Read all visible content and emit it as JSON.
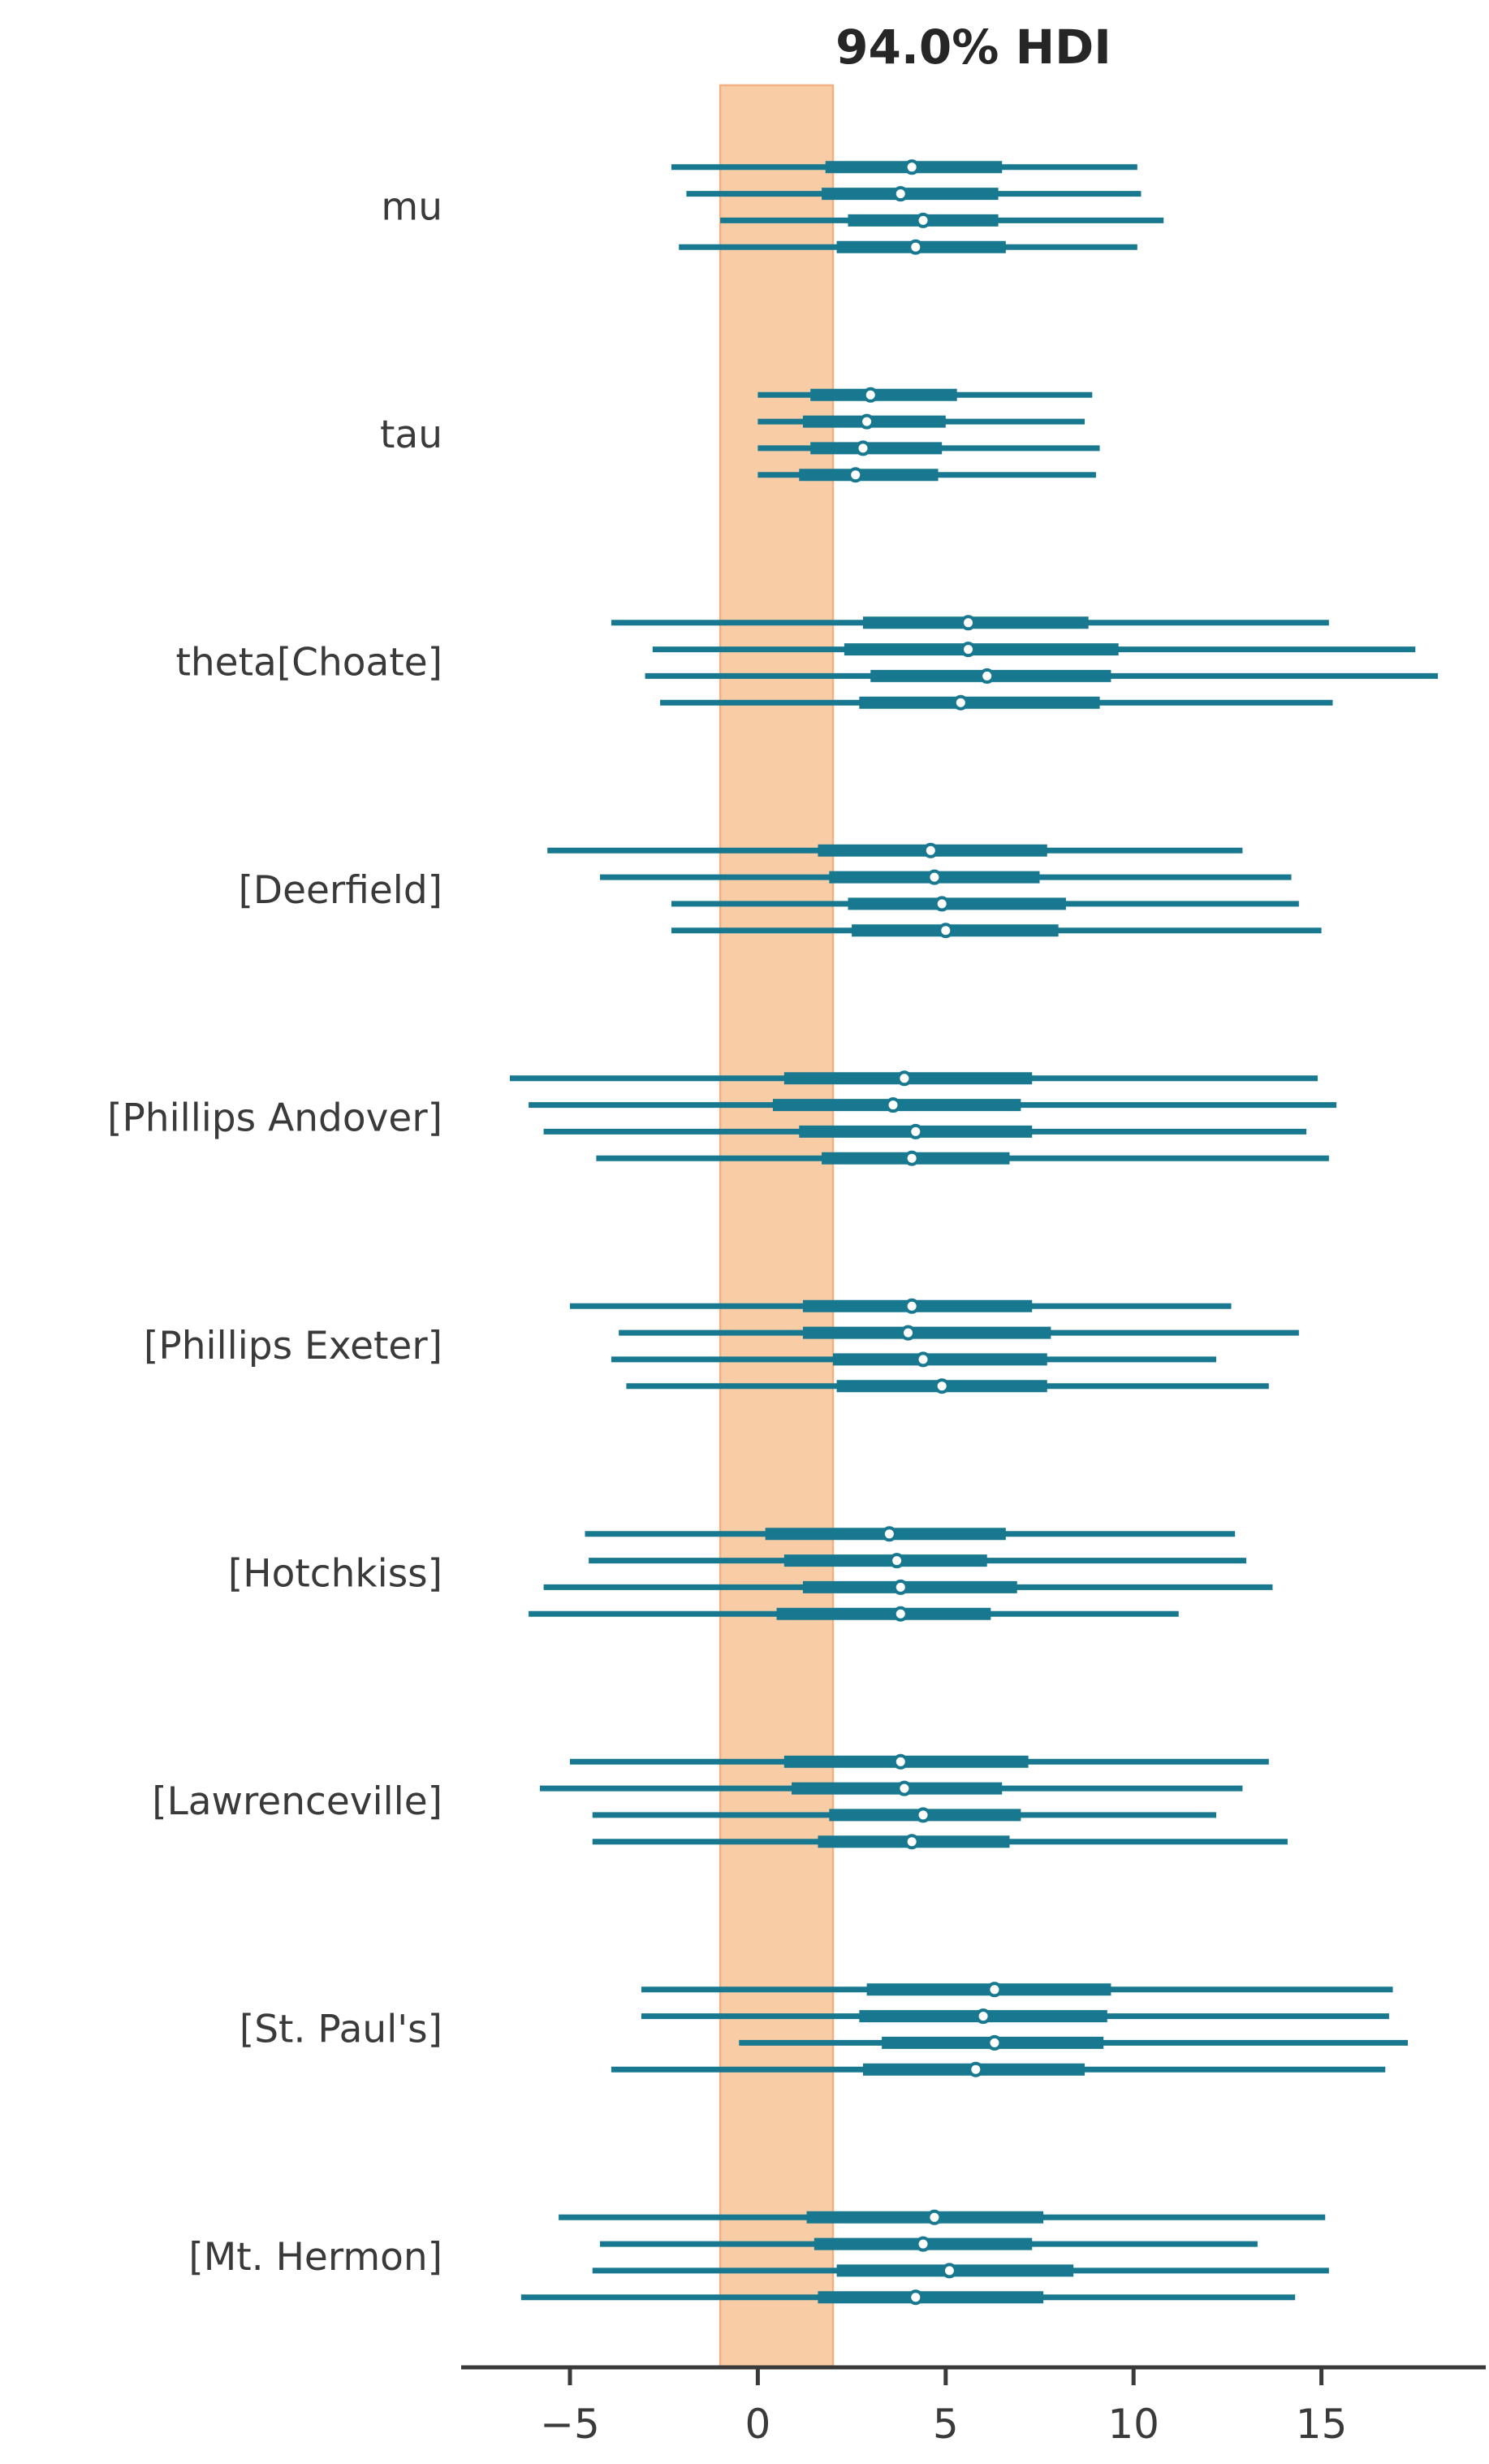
{
  "figure": {
    "title": "94.0% HDI"
  },
  "chart_data": {
    "type": "forest",
    "title": "94.0% HDI",
    "xlabel": "",
    "ylabel": "",
    "x_ticks": [
      -5,
      0,
      5,
      10,
      15
    ],
    "x_tick_labels": [
      "−5",
      "0",
      "5",
      "10",
      "15"
    ],
    "xlim": [
      -7.9,
      19.4
    ],
    "grid": false,
    "legend_position": "none",
    "hdi_prob": 0.94,
    "rope_interval": [
      -1,
      2
    ],
    "chains_per_parameter": 4,
    "value_keys": [
      "hdi_low",
      "q25",
      "median",
      "q75",
      "hdi_high"
    ],
    "parameters": [
      {
        "label": "mu",
        "chains": [
          {
            "hdi_low": -2.3,
            "q25": 1.8,
            "median": 4.1,
            "q75": 6.5,
            "hdi_high": 10.1
          },
          {
            "hdi_low": -1.9,
            "q25": 1.7,
            "median": 3.8,
            "q75": 6.4,
            "hdi_high": 10.2
          },
          {
            "hdi_low": -1.0,
            "q25": 2.4,
            "median": 4.4,
            "q75": 6.4,
            "hdi_high": 10.8
          },
          {
            "hdi_low": -2.1,
            "q25": 2.1,
            "median": 4.2,
            "q75": 6.6,
            "hdi_high": 10.1
          }
        ]
      },
      {
        "label": "tau",
        "chains": [
          {
            "hdi_low": 0.0,
            "q25": 1.4,
            "median": 3.0,
            "q75": 5.3,
            "hdi_high": 8.9
          },
          {
            "hdi_low": 0.0,
            "q25": 1.2,
            "median": 2.9,
            "q75": 5.0,
            "hdi_high": 8.7
          },
          {
            "hdi_low": 0.0,
            "q25": 1.4,
            "median": 2.8,
            "q75": 4.9,
            "hdi_high": 9.1
          },
          {
            "hdi_low": 0.0,
            "q25": 1.1,
            "median": 2.6,
            "q75": 4.8,
            "hdi_high": 9.0
          }
        ]
      },
      {
        "label": "theta[Choate]",
        "chains": [
          {
            "hdi_low": -3.9,
            "q25": 2.8,
            "median": 5.6,
            "q75": 8.8,
            "hdi_high": 15.2
          },
          {
            "hdi_low": -2.8,
            "q25": 2.3,
            "median": 5.6,
            "q75": 9.6,
            "hdi_high": 17.5
          },
          {
            "hdi_low": -3.0,
            "q25": 3.0,
            "median": 6.1,
            "q75": 9.4,
            "hdi_high": 18.1
          },
          {
            "hdi_low": -2.6,
            "q25": 2.7,
            "median": 5.4,
            "q75": 9.1,
            "hdi_high": 15.3
          }
        ]
      },
      {
        "label": "[Deerfield]",
        "chains": [
          {
            "hdi_low": -5.6,
            "q25": 1.6,
            "median": 4.6,
            "q75": 7.7,
            "hdi_high": 12.9
          },
          {
            "hdi_low": -4.2,
            "q25": 1.9,
            "median": 4.7,
            "q75": 7.5,
            "hdi_high": 14.2
          },
          {
            "hdi_low": -2.3,
            "q25": 2.4,
            "median": 4.9,
            "q75": 8.2,
            "hdi_high": 14.4
          },
          {
            "hdi_low": -2.3,
            "q25": 2.5,
            "median": 5.0,
            "q75": 8.0,
            "hdi_high": 15.0
          }
        ]
      },
      {
        "label": "[Phillips Andover]",
        "chains": [
          {
            "hdi_low": -6.6,
            "q25": 0.7,
            "median": 3.9,
            "q75": 7.3,
            "hdi_high": 14.9
          },
          {
            "hdi_low": -6.1,
            "q25": 0.4,
            "median": 3.6,
            "q75": 7.0,
            "hdi_high": 15.4
          },
          {
            "hdi_low": -5.7,
            "q25": 1.1,
            "median": 4.2,
            "q75": 7.3,
            "hdi_high": 14.6
          },
          {
            "hdi_low": -4.3,
            "q25": 1.7,
            "median": 4.1,
            "q75": 6.7,
            "hdi_high": 15.2
          }
        ]
      },
      {
        "label": "[Phillips Exeter]",
        "chains": [
          {
            "hdi_low": -5.0,
            "q25": 1.2,
            "median": 4.1,
            "q75": 7.3,
            "hdi_high": 12.6
          },
          {
            "hdi_low": -3.7,
            "q25": 1.2,
            "median": 4.0,
            "q75": 7.8,
            "hdi_high": 14.4
          },
          {
            "hdi_low": -3.9,
            "q25": 2.0,
            "median": 4.4,
            "q75": 7.7,
            "hdi_high": 12.2
          },
          {
            "hdi_low": -3.5,
            "q25": 2.1,
            "median": 4.9,
            "q75": 7.7,
            "hdi_high": 13.6
          }
        ]
      },
      {
        "label": "[Hotchkiss]",
        "chains": [
          {
            "hdi_low": -4.6,
            "q25": 0.2,
            "median": 3.5,
            "q75": 6.6,
            "hdi_high": 12.7
          },
          {
            "hdi_low": -4.5,
            "q25": 0.7,
            "median": 3.7,
            "q75": 6.1,
            "hdi_high": 13.0
          },
          {
            "hdi_low": -5.7,
            "q25": 1.2,
            "median": 3.8,
            "q75": 6.9,
            "hdi_high": 13.7
          },
          {
            "hdi_low": -6.1,
            "q25": 0.5,
            "median": 3.8,
            "q75": 6.2,
            "hdi_high": 11.2
          }
        ]
      },
      {
        "label": "[Lawrenceville]",
        "chains": [
          {
            "hdi_low": -5.0,
            "q25": 0.7,
            "median": 3.8,
            "q75": 7.2,
            "hdi_high": 13.6
          },
          {
            "hdi_low": -5.8,
            "q25": 0.9,
            "median": 3.9,
            "q75": 6.5,
            "hdi_high": 12.9
          },
          {
            "hdi_low": -4.4,
            "q25": 1.9,
            "median": 4.4,
            "q75": 7.0,
            "hdi_high": 12.2
          },
          {
            "hdi_low": -4.4,
            "q25": 1.6,
            "median": 4.1,
            "q75": 6.7,
            "hdi_high": 14.1
          }
        ]
      },
      {
        "label": "[St. Paul's]",
        "chains": [
          {
            "hdi_low": -3.1,
            "q25": 2.9,
            "median": 6.3,
            "q75": 9.4,
            "hdi_high": 16.9
          },
          {
            "hdi_low": -3.1,
            "q25": 2.7,
            "median": 6.0,
            "q75": 9.3,
            "hdi_high": 16.8
          },
          {
            "hdi_low": -0.5,
            "q25": 3.3,
            "median": 6.3,
            "q75": 9.2,
            "hdi_high": 17.3
          },
          {
            "hdi_low": -3.9,
            "q25": 2.8,
            "median": 5.8,
            "q75": 8.7,
            "hdi_high": 16.7
          }
        ]
      },
      {
        "label": "[Mt. Hermon]",
        "chains": [
          {
            "hdi_low": -5.3,
            "q25": 1.3,
            "median": 4.7,
            "q75": 7.6,
            "hdi_high": 15.1
          },
          {
            "hdi_low": -4.2,
            "q25": 1.5,
            "median": 4.4,
            "q75": 7.3,
            "hdi_high": 13.3
          },
          {
            "hdi_low": -4.4,
            "q25": 2.1,
            "median": 5.1,
            "q75": 8.4,
            "hdi_high": 15.2
          },
          {
            "hdi_low": -6.3,
            "q25": 1.6,
            "median": 4.2,
            "q75": 7.6,
            "hdi_high": 14.3
          }
        ]
      }
    ]
  },
  "colors": {
    "line": "#17788f",
    "marker_fill": "#ffffff",
    "rope_fill": "#f8cda6",
    "rope_edge": "#f2b183",
    "axis": "#3a3a3a",
    "text": "#3a3a3a",
    "title": "#262626",
    "background": "#ffffff"
  }
}
